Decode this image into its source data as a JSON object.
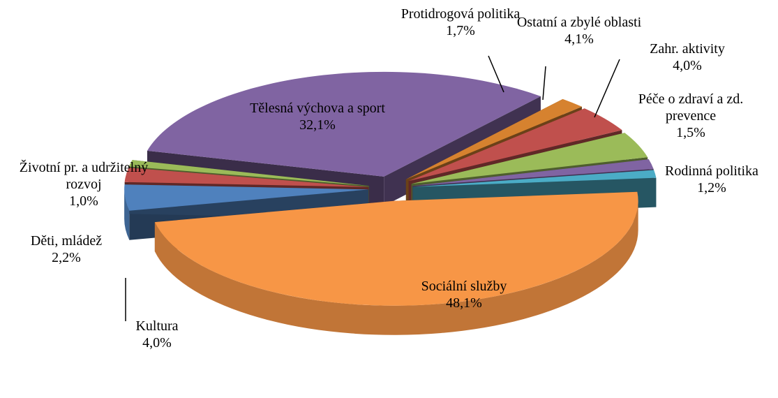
{
  "chart_data": {
    "type": "pie3d",
    "categories": [
      "Sociální služby",
      "Kultura",
      "Děti, mládež",
      "Životní pr. a udržitelný rozvoj",
      "Tělesná výchova a sport",
      "Protidrogová politika",
      "Ostatní a zbylé oblasti",
      "Zahr. aktivity",
      "Péče o zdraví a zd. prevence",
      "Rodinná politika"
    ],
    "values": [
      48.1,
      4.0,
      2.2,
      1.0,
      32.1,
      1.7,
      4.1,
      4.0,
      1.5,
      1.2
    ],
    "value_labels": [
      "48,1%",
      "4,0%",
      "2,2%",
      "1,0%",
      "32,1%",
      "1,7%",
      "4,1%",
      "4,0%",
      "1,5%",
      "1,2%"
    ],
    "colors": [
      "#f79646",
      "#4f81bd",
      "#c0504d",
      "#9bbb59",
      "#8064a2",
      "#d6822f",
      "#c0504d",
      "#9bbb59",
      "#8064a2",
      "#4bacc6"
    ]
  }
}
